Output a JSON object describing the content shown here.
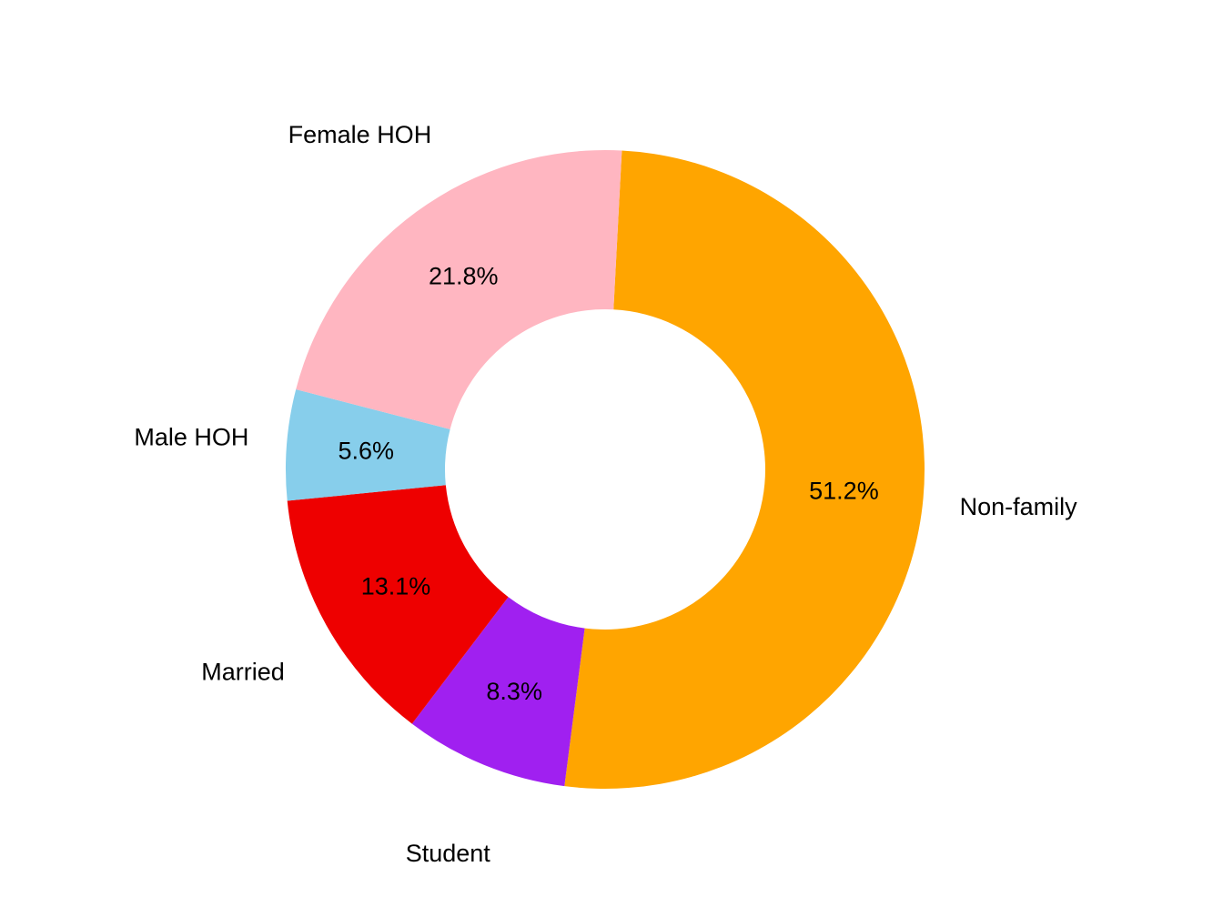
{
  "chart_data": {
    "type": "pie",
    "donut": true,
    "legend": "none",
    "grid": false,
    "slices": [
      {
        "name": "Non-family",
        "value": 51.2,
        "label": "51.2%",
        "color": "#FFA500"
      },
      {
        "name": "Student",
        "value": 8.3,
        "label": "8.3%",
        "color": "#A020F0"
      },
      {
        "name": "Married",
        "value": 13.1,
        "label": "13.1%",
        "color": "#EE0000"
      },
      {
        "name": "Male HOH",
        "value": 5.6,
        "label": "5.6%",
        "color": "#87CEEB"
      },
      {
        "name": "Female HOH",
        "value": 21.8,
        "label": "21.8%",
        "color": "#FFB6C1"
      }
    ]
  }
}
